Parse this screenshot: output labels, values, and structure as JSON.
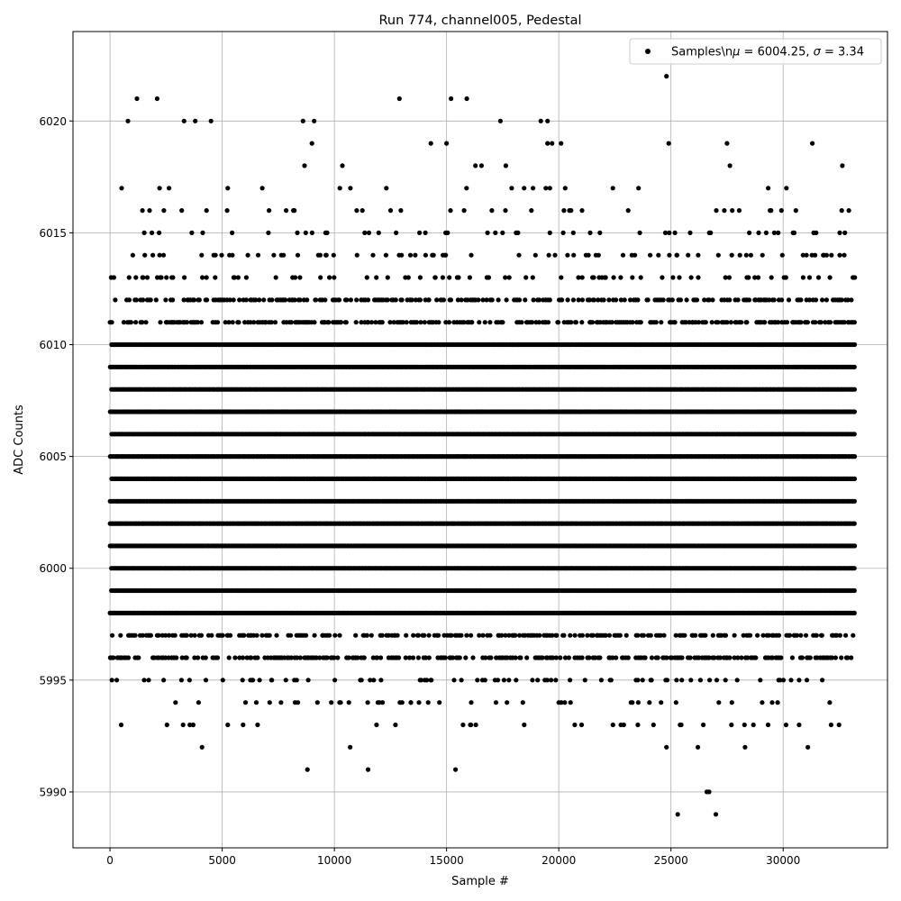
{
  "chart_data": {
    "type": "scatter",
    "title": "Run 774, channel005, Pedestal",
    "xlabel": "Sample #",
    "ylabel": "ADC Counts",
    "xlim": [
      -1650,
      34650
    ],
    "ylim": [
      5987.5,
      6024.0
    ],
    "xticks": [
      0,
      5000,
      10000,
      15000,
      20000,
      25000,
      30000
    ],
    "yticks": [
      5990,
      5995,
      6000,
      6005,
      6010,
      6015,
      6020
    ],
    "grid": true,
    "legend": "top-right",
    "color": "#000000",
    "series": [
      {
        "name": "Samples\\n$\\mu$ = 6004.25, $\\sigma$ = 3.34",
        "legend_parts": [
          "Samples\\n",
          "μ",
          " = 6004.25, ",
          "σ",
          " = 3.34"
        ],
        "x_range": [
          0,
          33200
        ],
        "dense_levels": [
          5998,
          5999,
          6000,
          6001,
          6002,
          6003,
          6004,
          6005,
          6006,
          6007,
          6008,
          6009,
          6010
        ],
        "medium_levels": [
          5996,
          5997,
          6011,
          6012
        ],
        "sparse_levels": [
          5993,
          5994,
          5995,
          6013,
          6014,
          6015,
          6016,
          6017,
          6018
        ],
        "outliers": [
          {
            "x": 24800,
            "y": 6022
          },
          {
            "x": 1200,
            "y": 6021
          },
          {
            "x": 2100,
            "y": 6021
          },
          {
            "x": 12900,
            "y": 6021
          },
          {
            "x": 15200,
            "y": 6021
          },
          {
            "x": 15900,
            "y": 6021
          },
          {
            "x": 800,
            "y": 6020
          },
          {
            "x": 3300,
            "y": 6020
          },
          {
            "x": 3800,
            "y": 6020
          },
          {
            "x": 4500,
            "y": 6020
          },
          {
            "x": 8600,
            "y": 6020
          },
          {
            "x": 9100,
            "y": 6020
          },
          {
            "x": 17400,
            "y": 6020
          },
          {
            "x": 19200,
            "y": 6020
          },
          {
            "x": 19500,
            "y": 6020
          },
          {
            "x": 9000,
            "y": 6019
          },
          {
            "x": 14300,
            "y": 6019
          },
          {
            "x": 15000,
            "y": 6019
          },
          {
            "x": 19500,
            "y": 6019
          },
          {
            "x": 19700,
            "y": 6019
          },
          {
            "x": 20100,
            "y": 6019
          },
          {
            "x": 24900,
            "y": 6019
          },
          {
            "x": 27500,
            "y": 6019
          },
          {
            "x": 31300,
            "y": 6019
          },
          {
            "x": 4100,
            "y": 5992
          },
          {
            "x": 10700,
            "y": 5992
          },
          {
            "x": 24800,
            "y": 5992
          },
          {
            "x": 26200,
            "y": 5992
          },
          {
            "x": 28300,
            "y": 5992
          },
          {
            "x": 31100,
            "y": 5992
          },
          {
            "x": 8800,
            "y": 5991
          },
          {
            "x": 11500,
            "y": 5991
          },
          {
            "x": 15400,
            "y": 5991
          },
          {
            "x": 26600,
            "y": 5990
          },
          {
            "x": 26700,
            "y": 5990
          },
          {
            "x": 25300,
            "y": 5989
          },
          {
            "x": 27000,
            "y": 5989
          }
        ]
      }
    ]
  }
}
